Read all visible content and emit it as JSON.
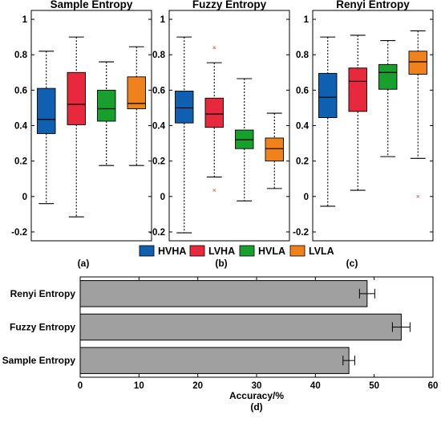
{
  "chart_data": [
    {
      "type": "box",
      "title": "Sample Entropy",
      "label": "(a)",
      "ylim": [
        -0.25,
        1.05
      ],
      "yticks": [
        -0.2,
        0,
        0.2,
        0.4,
        0.6,
        0.8,
        1
      ],
      "ytick_labels": [
        "-0.2",
        "0",
        "0.2",
        "0.4",
        "0.6",
        "0.8",
        "1"
      ],
      "boxes": [
        {
          "name": "HVHA",
          "min": -0.04,
          "q1": 0.355,
          "median": 0.435,
          "q3": 0.61,
          "max": 0.82,
          "outliers": []
        },
        {
          "name": "LVHA",
          "min": -0.115,
          "q1": 0.405,
          "median": 0.52,
          "q3": 0.7,
          "max": 0.9,
          "outliers": []
        },
        {
          "name": "HVLA",
          "min": 0.175,
          "q1": 0.425,
          "median": 0.495,
          "q3": 0.6,
          "max": 0.76,
          "outliers": []
        },
        {
          "name": "LVLA",
          "min": 0.175,
          "q1": 0.495,
          "median": 0.525,
          "q3": 0.675,
          "max": 0.845,
          "outliers": []
        }
      ]
    },
    {
      "type": "box",
      "title": "Fuzzy Entropy",
      "label": "(b)",
      "ylim": [
        -0.25,
        1.05
      ],
      "yticks": [
        -0.2,
        0,
        0.2,
        0.4,
        0.6,
        0.8,
        1
      ],
      "ytick_labels": [
        "-0.2",
        "0",
        "0.2",
        "0.4",
        "0.6",
        "0.8",
        "1"
      ],
      "boxes": [
        {
          "name": "HVHA",
          "min": -0.205,
          "q1": 0.415,
          "median": 0.5,
          "q3": 0.595,
          "max": 0.9,
          "outliers": []
        },
        {
          "name": "LVHA",
          "min": 0.11,
          "q1": 0.39,
          "median": 0.465,
          "q3": 0.555,
          "max": 0.755,
          "outliers": [
            0.84,
            0.035
          ]
        },
        {
          "name": "HVLA",
          "min": -0.025,
          "q1": 0.27,
          "median": 0.32,
          "q3": 0.375,
          "max": 0.665,
          "outliers": []
        },
        {
          "name": "LVLA",
          "min": 0.045,
          "q1": 0.2,
          "median": 0.27,
          "q3": 0.33,
          "max": 0.47,
          "outliers": []
        }
      ]
    },
    {
      "type": "box",
      "title": "Renyi Entropy",
      "label": "(c)",
      "ylim": [
        -0.25,
        1.05
      ],
      "yticks": [
        -0.2,
        0,
        0.2,
        0.4,
        0.6,
        0.8,
        1
      ],
      "ytick_labels": [
        "-0.2",
        "0",
        "0.2",
        "0.4",
        "0.6",
        "0.8",
        "1"
      ],
      "boxes": [
        {
          "name": "HVHA",
          "min": -0.055,
          "q1": 0.445,
          "median": 0.56,
          "q3": 0.695,
          "max": 0.9,
          "outliers": []
        },
        {
          "name": "LVHA",
          "min": 0.035,
          "q1": 0.48,
          "median": 0.65,
          "q3": 0.725,
          "max": 0.91,
          "outliers": []
        },
        {
          "name": "HVLA",
          "min": 0.225,
          "q1": 0.605,
          "median": 0.7,
          "q3": 0.745,
          "max": 0.88,
          "outliers": []
        },
        {
          "name": "LVLA",
          "min": 0.215,
          "q1": 0.69,
          "median": 0.76,
          "q3": 0.82,
          "max": 0.935,
          "outliers": [
            0.0
          ]
        }
      ]
    },
    {
      "type": "bar",
      "orientation": "horizontal",
      "label": "(d)",
      "xlabel": "Accuracy/%",
      "xlim": [
        0,
        60
      ],
      "xticks": [
        0,
        10,
        20,
        30,
        40,
        50,
        60
      ],
      "xtick_labels": [
        "0",
        "10",
        "20",
        "30",
        "40",
        "50",
        "60"
      ],
      "categories": [
        "Renyi Entropy",
        "Fuzzy Entropy",
        "Sample Entropy"
      ],
      "values": [
        48.8,
        54.6,
        45.7
      ],
      "errors": [
        1.3,
        1.5,
        1.0
      ],
      "bar_color": "#a0a0a0"
    }
  ],
  "legend": {
    "placement": "bottom-center",
    "items": [
      {
        "label": "HVHA",
        "color": "#0f60b0"
      },
      {
        "label": "LVHA",
        "color": "#e8283c"
      },
      {
        "label": "HVLA",
        "color": "#18a02c"
      },
      {
        "label": "LVLA",
        "color": "#f0821e"
      }
    ]
  },
  "colors": {
    "axis": "#000000",
    "outlier": "#f07070"
  }
}
